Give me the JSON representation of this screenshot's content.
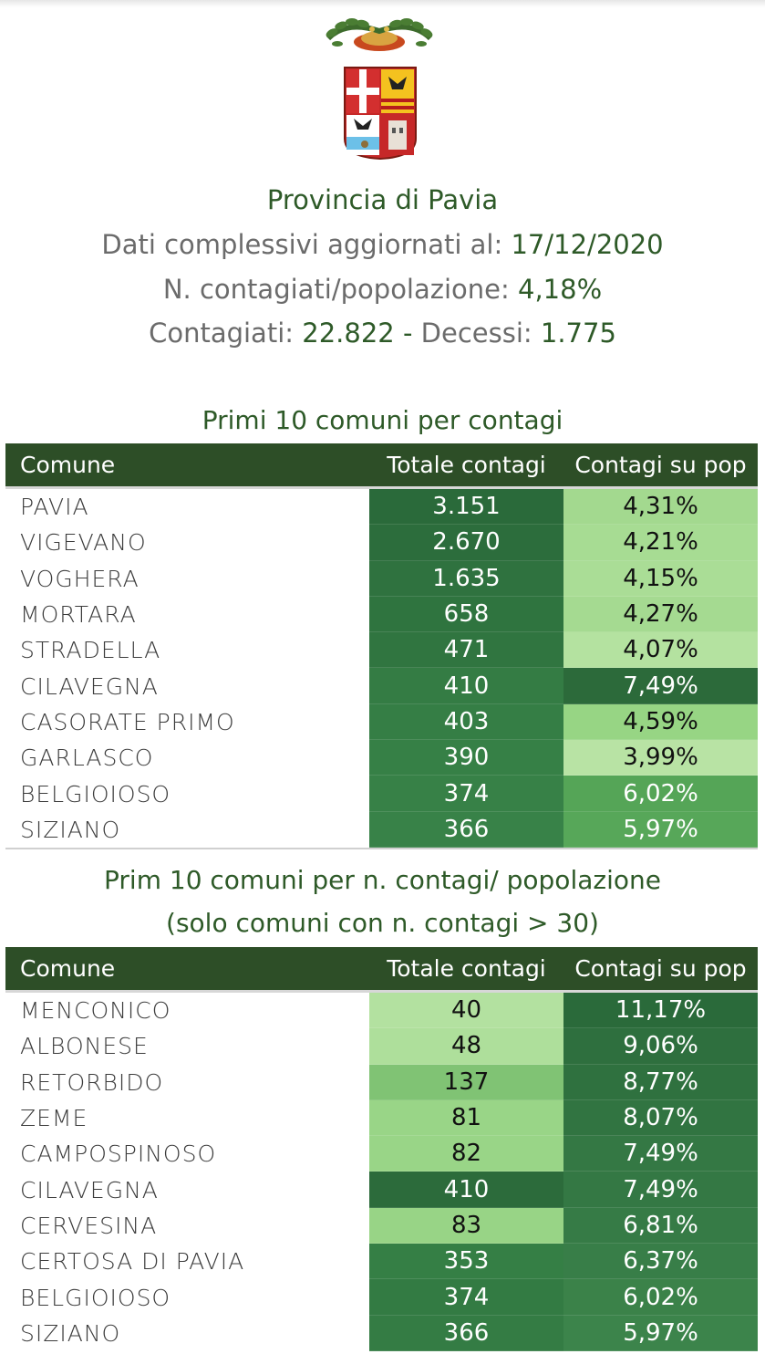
{
  "header": {
    "title": "Provincia di Pavia",
    "date_label": "Dati complessivi aggiornati al:",
    "date_value": "17/12/2020",
    "ratio_label": "N. contagiati/popolazione:",
    "ratio_value": "4,18%",
    "infected_label": "Contagiati:",
    "infected_value": "22.822",
    "separator": "-",
    "deaths_label": "Decessi:",
    "deaths_value": "1.775"
  },
  "colors": {
    "title_green": "#2e5a28",
    "header_bg": "#2d4e27",
    "label_gray": "#6b6b6b"
  },
  "table1": {
    "title": "Primi 10 comuni per contagi",
    "columns": [
      "Comune",
      "Totale contagi",
      "Contagi su pop"
    ],
    "rows": [
      {
        "comune": "PAVIA",
        "totale": "3.151",
        "pop": "4,31%",
        "tot_color": "#2a6a3a",
        "pop_color": "#a3d98f"
      },
      {
        "comune": "VIGEVANO",
        "totale": "2.670",
        "pop": "4,21%",
        "tot_color": "#2c6d3c",
        "pop_color": "#a7dc93"
      },
      {
        "comune": "VOGHERA",
        "totale": "1.635",
        "pop": "4,15%",
        "tot_color": "#2f723f",
        "pop_color": "#aadd96"
      },
      {
        "comune": "MORTARA",
        "totale": "658",
        "pop": "4,27%",
        "tot_color": "#2f743f",
        "pop_color": "#a5da91"
      },
      {
        "comune": "STRADELLA",
        "totale": "471",
        "pop": "4,07%",
        "tot_color": "#307540",
        "pop_color": "#b4e2a0"
      },
      {
        "comune": "CILAVEGNA",
        "totale": "410",
        "pop": "7,49%",
        "tot_color": "#347c44",
        "pop_color": "#2c6a3a"
      },
      {
        "comune": "CASORATE PRIMO",
        "totale": "403",
        "pop": "4,59%",
        "tot_color": "#357e45",
        "pop_color": "#97d584"
      },
      {
        "comune": "GARLASCO",
        "totale": "390",
        "pop": "3,99%",
        "tot_color": "#368046",
        "pop_color": "#b8e3a4"
      },
      {
        "comune": "BELGIOIOSO",
        "totale": "374",
        "pop": "6,02%",
        "tot_color": "#378147",
        "pop_color": "#55a557"
      },
      {
        "comune": "SIZIANO",
        "totale": "366",
        "pop": "5,97%",
        "tot_color": "#388248",
        "pop_color": "#57a759"
      }
    ]
  },
  "table2": {
    "title_line1": "Prim 10 comuni per n. contagi/ popolazione",
    "title_line2": "(solo comuni con n. contagi > 30)",
    "columns": [
      "Comune",
      "Totale contagi",
      "Contagi su pop"
    ],
    "rows": [
      {
        "comune": "MENCONICO",
        "totale": "40",
        "pop": "11,17%",
        "tot_color": "#b3e1a0",
        "pop_color": "#2a6a3a"
      },
      {
        "comune": "ALBONESE",
        "totale": "48",
        "pop": "9,06%",
        "tot_color": "#aedf9b",
        "pop_color": "#2e6f3e"
      },
      {
        "comune": "RETORBIDO",
        "totale": "137",
        "pop": "8,77%",
        "tot_color": "#80c374",
        "pop_color": "#2f713f"
      },
      {
        "comune": "ZEME",
        "totale": "81",
        "pop": "8,07%",
        "tot_color": "#99d587",
        "pop_color": "#317441"
      },
      {
        "comune": "CAMPOSPINOSO",
        "totale": "82",
        "pop": "7,49%",
        "tot_color": "#99d587",
        "pop_color": "#347844"
      },
      {
        "comune": "CILAVEGNA",
        "totale": "410",
        "pop": "7,49%",
        "tot_color": "#2c6b3b",
        "pop_color": "#347844"
      },
      {
        "comune": "CERVESINA",
        "totale": "83",
        "pop": "6,81%",
        "tot_color": "#98d486",
        "pop_color": "#367b46"
      },
      {
        "comune": "CERTOSA DI PAVIA",
        "totale": "353",
        "pop": "6,37%",
        "tot_color": "#357f45",
        "pop_color": "#387e48"
      },
      {
        "comune": "BELGIOIOSO",
        "totale": "374",
        "pop": "6,02%",
        "tot_color": "#337b43",
        "pop_color": "#3b8249"
      },
      {
        "comune": "SIZIANO",
        "totale": "366",
        "pop": "5,97%",
        "tot_color": "#347c44",
        "pop_color": "#3c844b"
      }
    ]
  }
}
